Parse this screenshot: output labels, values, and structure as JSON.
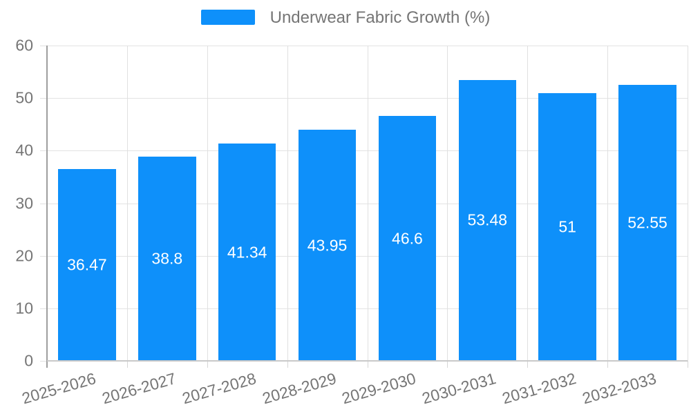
{
  "legend": {
    "label": "Underwear Fabric Growth (%)"
  },
  "chart_data": {
    "type": "bar",
    "title": "Underwear Fabric Growth (%)",
    "categories": [
      "2025-2026",
      "2026-2027",
      "2027-2028",
      "2028-2029",
      "2029-2030",
      "2030-2031",
      "2031-2032",
      "2032-2033"
    ],
    "values": [
      36.47,
      38.8,
      41.34,
      43.95,
      46.6,
      53.48,
      51,
      52.55
    ],
    "value_labels": [
      "36.47",
      "38.8",
      "41.34",
      "43.95",
      "46.6",
      "53.48",
      "51",
      "52.55"
    ],
    "xlabel": "",
    "ylabel": "",
    "ylim": [
      0,
      60
    ],
    "yticks": [
      0,
      10,
      20,
      30,
      40,
      50,
      60
    ],
    "grid": true,
    "legend_position": "top",
    "value_label_position": "center-of-bar"
  },
  "colors": {
    "bar": "#0e90fa",
    "grid_h": "#e3e3e3",
    "grid_v": "#e0e0e0",
    "axis_line": "#9e9e9e",
    "baseline": "#c9c9c9",
    "tick_label": "#757575",
    "value_label": "#ffffff",
    "background": "#ffffff"
  }
}
